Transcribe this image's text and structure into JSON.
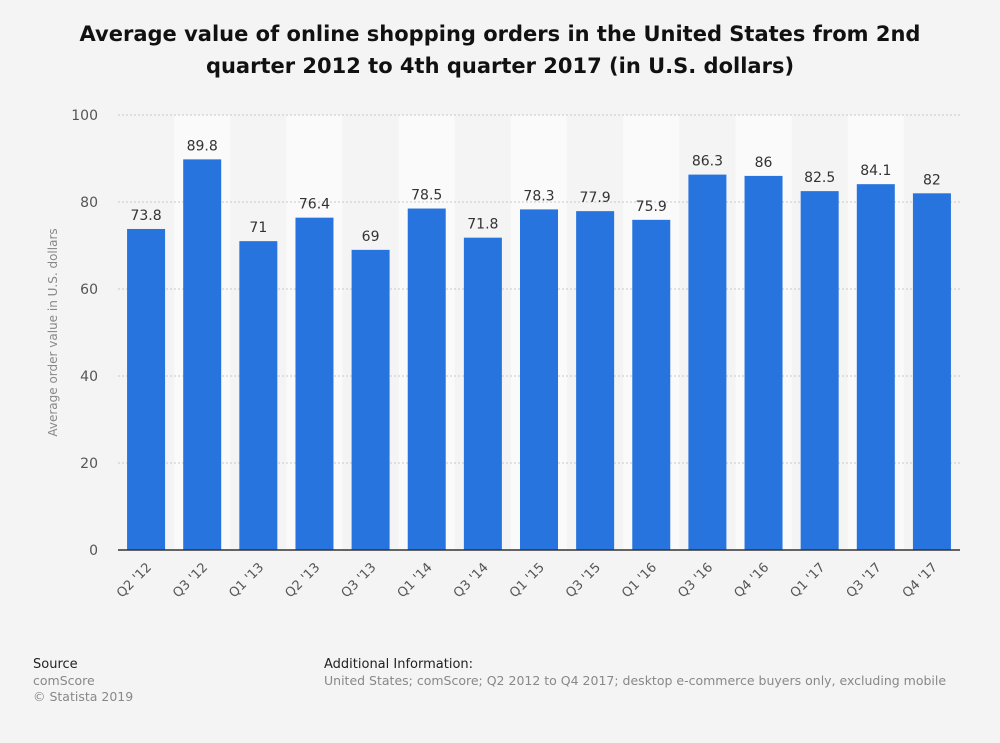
{
  "chart_data": {
    "type": "bar",
    "title": "Average value of online shopping orders in the United States from 2nd quarter 2012 to 4th quarter 2017 (in U.S. dollars)",
    "xlabel": "",
    "ylabel": "Average order value in U.S. dollars",
    "ylim": [
      0,
      100
    ],
    "yticks": [
      0,
      20,
      40,
      60,
      80,
      100
    ],
    "categories": [
      "Q2 '12",
      "Q3 '12",
      "Q1 '13",
      "Q2 '13",
      "Q3 '13",
      "Q1 '14",
      "Q3 '14",
      "Q1 '15",
      "Q3 '15",
      "Q1 '16",
      "Q3 '16",
      "Q4 '16",
      "Q1 '17",
      "Q3 '17",
      "Q4 '17"
    ],
    "values": [
      73.8,
      89.8,
      71,
      76.4,
      69,
      78.5,
      71.8,
      78.3,
      77.9,
      75.9,
      86.3,
      86,
      82.5,
      84.1,
      82
    ],
    "value_labels": [
      "73.8",
      "89.8",
      "71",
      "76.4",
      "69",
      "78.5",
      "71.8",
      "78.3",
      "77.9",
      "75.9",
      "86.3",
      "86",
      "82.5",
      "84.1",
      "82"
    ],
    "grid": true,
    "colors": {
      "bar": "#2874de",
      "band": "#fafafa",
      "grid": "#c8c8c8",
      "axis": "#333333",
      "tick_text": "#555555"
    }
  },
  "footer": {
    "source_heading": "Source",
    "source_name": "comScore",
    "copyright": "© Statista 2019",
    "additional_heading": "Additional Information:",
    "additional_text": "United States; comScore; Q2 2012 to Q4 2017; desktop e-commerce buyers only, excluding mobile"
  }
}
